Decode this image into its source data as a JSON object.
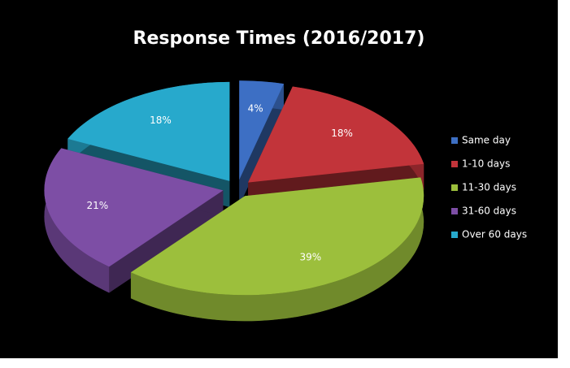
{
  "chart_data": {
    "type": "pie",
    "title": "Response Times (2016/2017)",
    "categories": [
      "Same day",
      "1-10 days",
      "11-30 days",
      "31-60 days",
      "Over 60 days"
    ],
    "values": [
      4,
      18,
      39,
      21,
      18
    ],
    "value_labels": [
      "4%",
      "18%",
      "39%",
      "21%",
      "18%"
    ],
    "colors": [
      "#3d6fc4",
      "#c2343a",
      "#9cbf3c",
      "#7d4ea5",
      "#27a9cc"
    ],
    "legend": "right"
  }
}
